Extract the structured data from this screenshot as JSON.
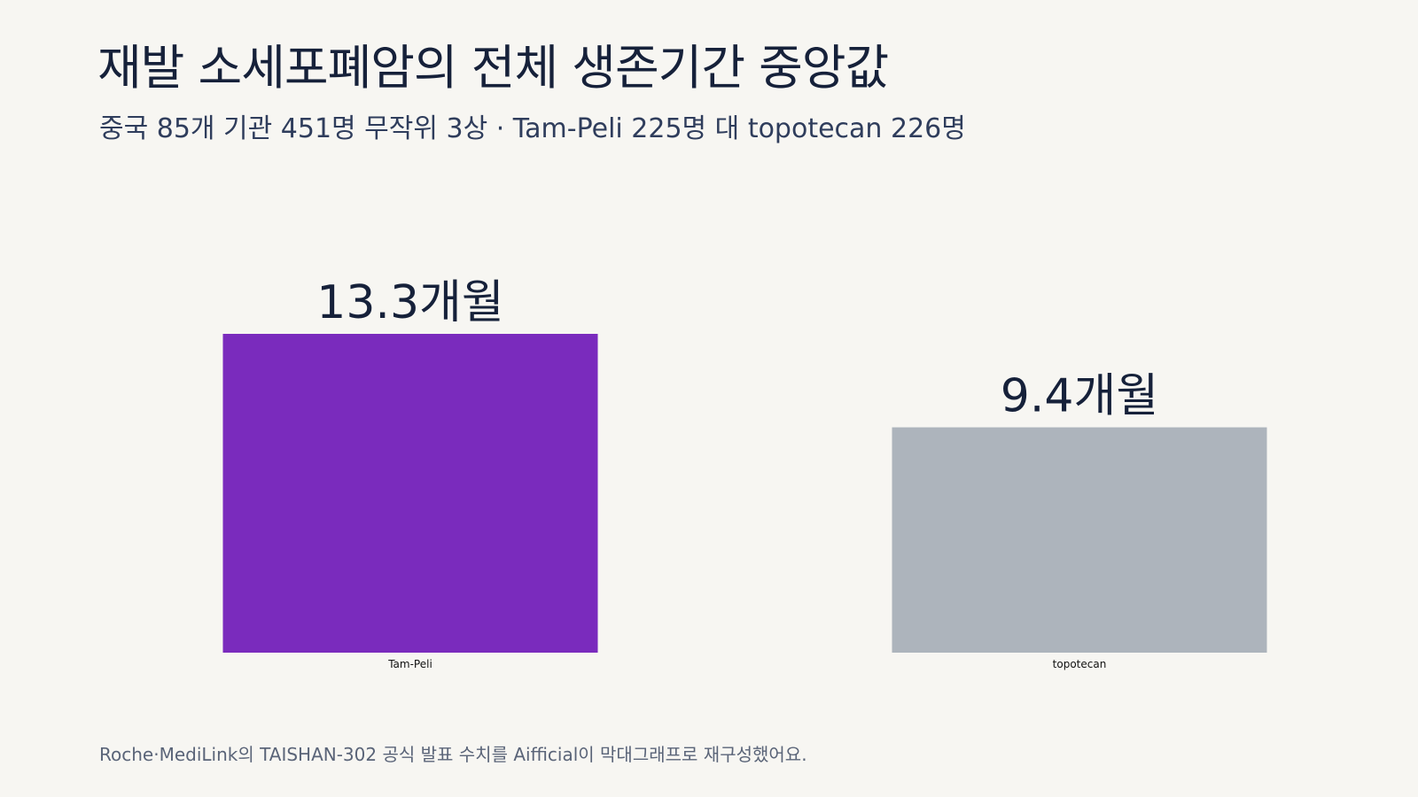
{
  "header": {
    "title": "재발 소세포폐암의 전체 생존기간 중앙값",
    "subtitle": "중국 85개 기관 451명 무작위 3상 · Tam-Peli 225명 대 topotecan 226명"
  },
  "footer": {
    "note": "Roche·MediLink의 TAISHAN-302 공식 발표 수치를 Aifficial이 막대그래프로 재구성했어요."
  },
  "chart_data": {
    "type": "bar",
    "title": "재발 소세포폐암의 전체 생존기간 중앙값",
    "xlabel": "",
    "ylabel": "",
    "unit": "개월",
    "categories": [
      "Tam-Peli",
      "topotecan"
    ],
    "values": [
      13.3,
      9.4
    ],
    "data_labels": [
      "13.3개월",
      "9.4개월"
    ],
    "colors": [
      "#7a2bbd",
      "#adb4bc"
    ],
    "ylim": [
      0,
      13.3
    ],
    "grid": false,
    "legend": "none"
  }
}
